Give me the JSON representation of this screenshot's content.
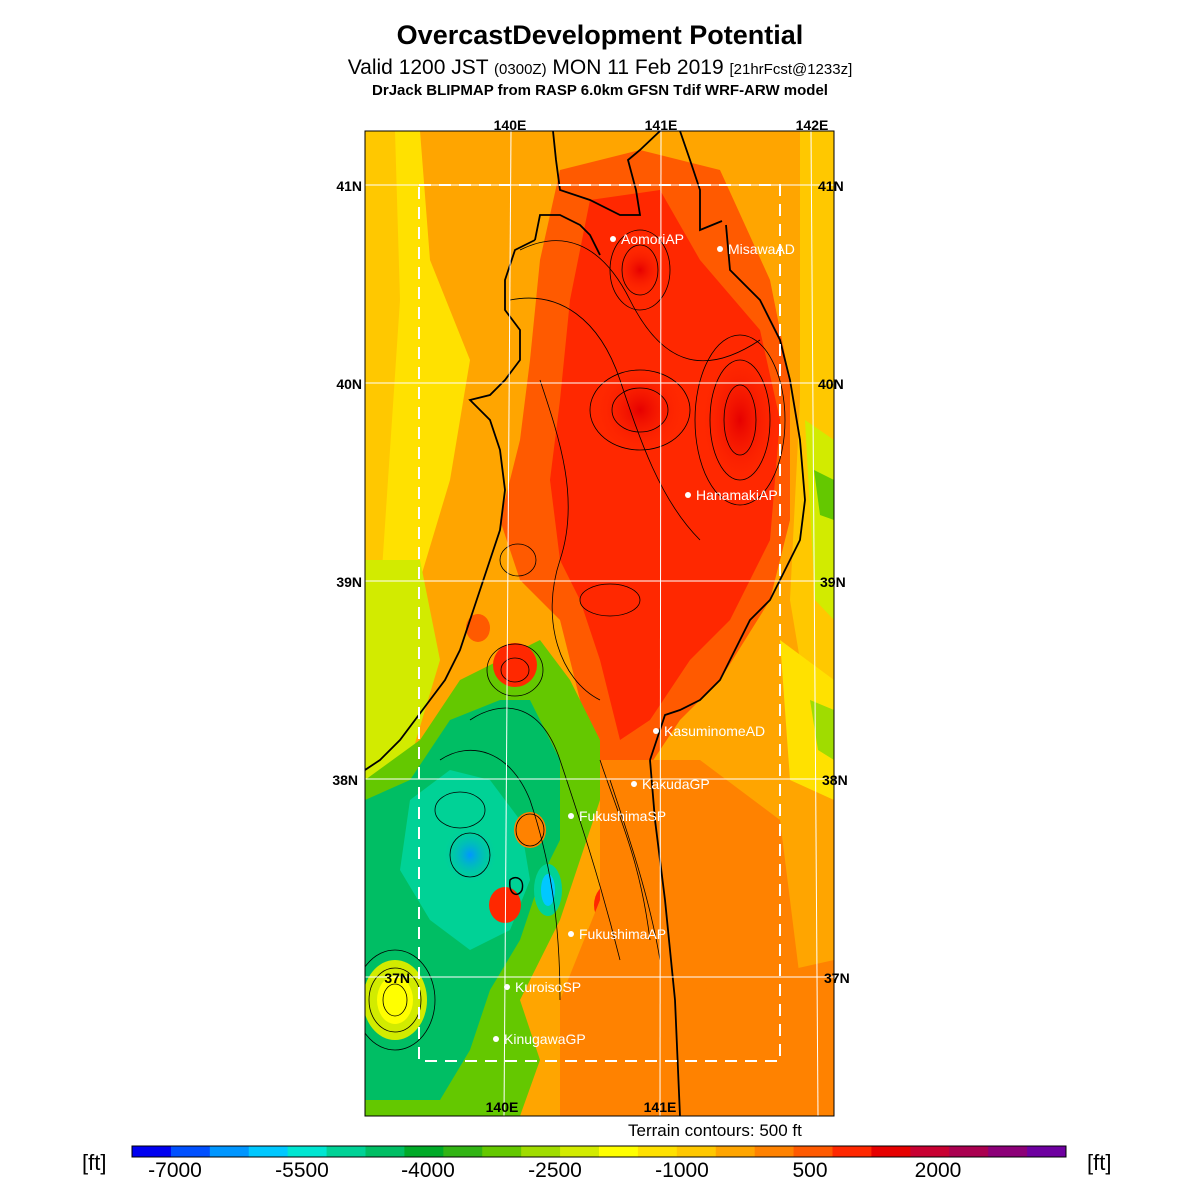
{
  "title": "OvercastDevelopment Potential",
  "subtitle": {
    "valid": "Valid 1200 JST",
    "zulu": "(0300Z)",
    "date": "MON 11 Feb 2019",
    "forecast": "[21hrFcst@1233z]"
  },
  "model_line": "DrJack BLIPMAP from RASP 6.0km GFSN Tdif WRF-ARW model",
  "axis_labels": {
    "lon_top": [
      "140E",
      "141E",
      "142E"
    ],
    "lon_bottom": [
      "140E",
      "141E"
    ],
    "lat_left": [
      "41N",
      "40N",
      "39N",
      "38N",
      "37N"
    ],
    "lat_right": [
      "41N",
      "40N",
      "39N",
      "38N",
      "37N"
    ]
  },
  "stations": [
    {
      "name": "AomoriAP"
    },
    {
      "name": "MisawaAD"
    },
    {
      "name": "HanamakiAP"
    },
    {
      "name": "KasuminomeAD"
    },
    {
      "name": "KakudaGP"
    },
    {
      "name": "FukushimaSP"
    },
    {
      "name": "FukushimaAP"
    },
    {
      "name": "KuroisoSP"
    },
    {
      "name": "KinugawaGP"
    }
  ],
  "terrain_note": "Terrain contours: 500 ft",
  "colorbar": {
    "unit": "[ft]",
    "ticks": [
      "-7000",
      "-5500",
      "-4000",
      "-2500",
      "-1000",
      "500",
      "2000"
    ],
    "colors": [
      "#0000f0",
      "#0050ff",
      "#0096ff",
      "#00c8ff",
      "#00e6d2",
      "#00d296",
      "#00be64",
      "#00aa28",
      "#32b414",
      "#64c800",
      "#a0dc00",
      "#d2eb00",
      "#ffff00",
      "#ffe100",
      "#ffc800",
      "#ffa500",
      "#ff8200",
      "#ff5a00",
      "#ff2800",
      "#e60000",
      "#c80032",
      "#aa0050",
      "#8c0078",
      "#6e00a0"
    ]
  }
}
